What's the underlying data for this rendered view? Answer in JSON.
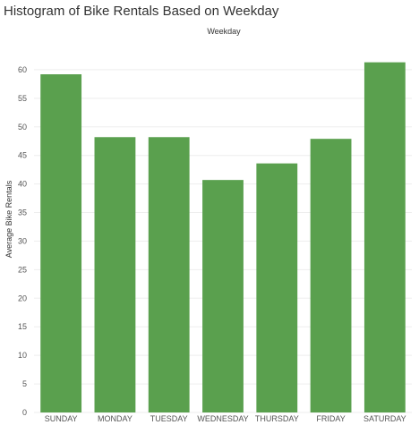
{
  "chart_data": {
    "type": "bar",
    "title": "Histogram of Bike Rentals Based on Weekday",
    "xlabel": "Weekday",
    "ylabel": "Average Bike Rentals",
    "categories": [
      "SUNDAY",
      "MONDAY",
      "TUESDAY",
      "WEDNESDAY",
      "THURSDAY",
      "FRIDAY",
      "SATURDAY"
    ],
    "values": [
      59.2,
      48.2,
      48.2,
      40.7,
      43.6,
      47.9,
      61.3
    ],
    "ylim": [
      0,
      65
    ],
    "yticks": [
      0,
      5,
      10,
      15,
      20,
      25,
      30,
      35,
      40,
      45,
      50,
      55,
      60
    ],
    "grid": true,
    "bar_color": "#5aa04e",
    "grid_color": "#eeeeee"
  }
}
